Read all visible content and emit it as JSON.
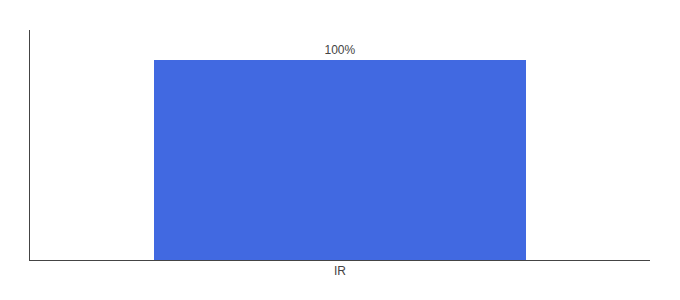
{
  "chart_data": {
    "type": "bar",
    "categories": [
      "IR"
    ],
    "values": [
      100
    ],
    "value_labels": [
      "100%"
    ],
    "data_labels": true,
    "color": "#4169e1",
    "ylim": [
      0,
      115
    ],
    "yticks": [],
    "tick_labels": "x",
    "grid": false
  }
}
